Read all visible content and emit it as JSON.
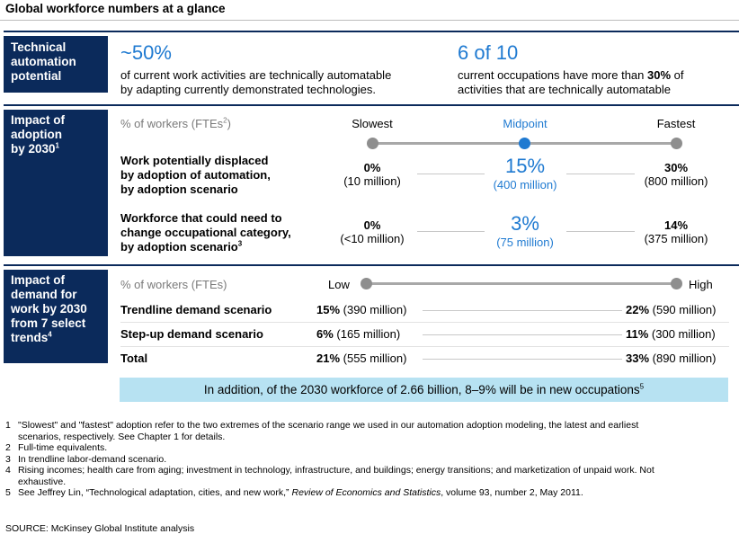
{
  "title": "Global workforce numbers at a glance",
  "section1": {
    "label": "Technical automation potential",
    "stat1_value": "~50%",
    "stat1_text_line1": "of current work activities are technically automatable",
    "stat1_text_line2": "by adapting currently demonstrated technologies.",
    "stat2_value": "6 of 10",
    "stat2_text_pre": "current occupations have more than ",
    "stat2_text_bold": "30%",
    "stat2_text_post": " of",
    "stat2_text_line2": "activities that are technically automatable"
  },
  "section2": {
    "label_line1": "Impact of",
    "label_line2": "adoption",
    "label_line3": "by 2030",
    "label_sup": "1",
    "unit_label": "% of workers (FTEs",
    "unit_sup": "2",
    "unit_close": ")",
    "scenarios": {
      "slowest": "Slowest",
      "midpoint": "Midpoint",
      "fastest": "Fastest"
    },
    "row1": {
      "label_line1": "Work potentially displaced",
      "label_line2": "by adoption of automation,",
      "label_line3": "by adoption scenario",
      "slowest_pct": "0%",
      "slowest_abs": "(10 million)",
      "mid_pct": "15%",
      "mid_abs": "(400 million)",
      "fastest_pct": "30%",
      "fastest_abs": "(800 million)"
    },
    "row2": {
      "label_line1": "Workforce that could need to",
      "label_line2": "change occupational category,",
      "label_line3": "by adoption scenario",
      "label_sup": "3",
      "slowest_pct": "0%",
      "slowest_abs": "(<10 million)",
      "mid_pct": "3%",
      "mid_abs": "(75 million)",
      "fastest_pct": "14%",
      "fastest_abs": "(375 million)"
    }
  },
  "section3": {
    "label_line1": "Impact of",
    "label_line2": "demand for",
    "label_line3": "work by 2030",
    "label_line4": "from 7 select",
    "label_line5": "trends",
    "label_sup": "4",
    "unit_label": "% of workers (FTEs)",
    "low": "Low",
    "high": "High",
    "rows": [
      {
        "label": "Trendline demand scenario",
        "low_pct": "15%",
        "low_abs": " (390 million)",
        "high_pct": "22%",
        "high_abs": " (590 million)"
      },
      {
        "label": "Step-up demand scenario",
        "low_pct": "6%",
        "low_abs": " (165 million)",
        "high_pct": "11%",
        "high_abs": " (300 million)"
      },
      {
        "label": "Total",
        "low_pct": "21%",
        "low_abs": " (555 million)",
        "high_pct": "33%",
        "high_abs": " (890 million)"
      }
    ],
    "callout": "In addition, of the 2030 workforce of 2.66 billion, 8–9% will be in new occupations",
    "callout_sup": "5"
  },
  "footnotes": {
    "f1_num": "1",
    "f1_line1": "\"Slowest\" and \"fastest\" adoption refer to the two extremes of the scenario range we used in our automation adoption modeling, the latest and earliest",
    "f1_line2": "scenarios, respectively. See Chapter 1 for details.",
    "f2_num": "2",
    "f2": "Full-time equivalents.",
    "f3_num": "3",
    "f3": "In trendline labor-demand scenario.",
    "f4_num": "4",
    "f4_line1": "Rising incomes; health care from aging; investment in technology, infrastructure, and buildings; energy transitions; and marketization of unpaid work. Not",
    "f4_line2": "exhaustive.",
    "f5_num": "5",
    "f5_pre": "See Jeffrey Lin, “Technological adaptation, cities, and new work,” ",
    "f5_italic": "Review of Economics and Statistics",
    "f5_post": ", volume 93, number 2, May 2011."
  },
  "source": "SOURCE: McKinsey Global Institute analysis",
  "colors": {
    "navy": "#0b2a5b",
    "accent_blue": "#1f7ad1",
    "callout_bg": "#b7e2f2",
    "dot_grey": "#8e8e8e"
  }
}
